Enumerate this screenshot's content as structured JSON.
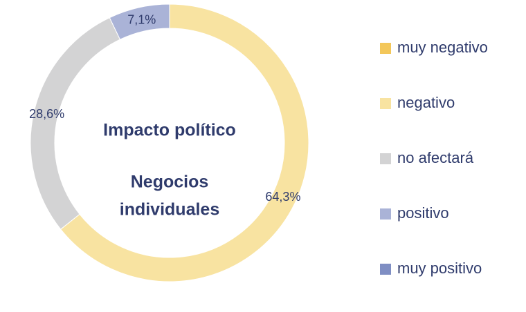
{
  "chart_data": {
    "type": "donut",
    "title": "Impacto político",
    "subtitle": [
      "Negocios",
      "individuales"
    ],
    "categories": [
      "muy negativo",
      "negativo",
      "no afectará",
      "positivo",
      "muy positivo"
    ],
    "values": [
      0,
      64.3,
      28.6,
      7.1,
      0
    ],
    "value_labels": [
      null,
      "64,3%",
      "28,6%",
      "7,1%",
      null
    ],
    "colors": [
      "#f3c75a",
      "#f8e3a1",
      "#d3d3d4",
      "#aab3d7",
      "#7f8ec3"
    ],
    "legend": "right"
  }
}
